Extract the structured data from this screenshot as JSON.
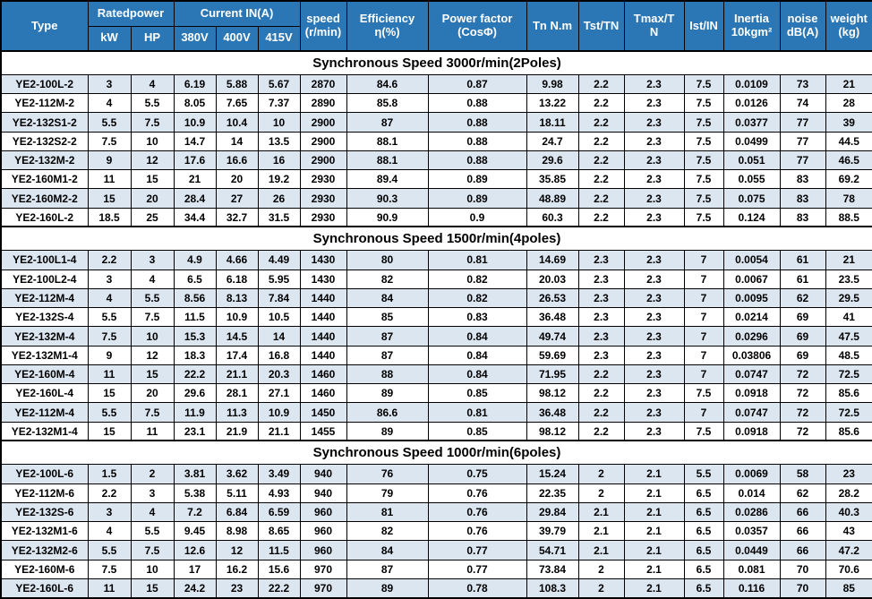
{
  "table": {
    "header": {
      "type": "Type",
      "rated_power": "Ratedpower",
      "kw": "kW",
      "hp": "HP",
      "current": "Current IN(A)",
      "v380": "380V",
      "v400": "400V",
      "v415": "415V",
      "speed_l1": "speed",
      "speed_l2": "(r/min)",
      "efficiency_l1": "Efficiency",
      "efficiency_l2": "η(%)",
      "power_factor_l1": "Power factor",
      "power_factor_l2": "(CosΦ)",
      "tn": "Tn N.m",
      "tst": "Tst/TN",
      "tmax": "Tmax/TN",
      "ist": "Ist/IN",
      "inertia_l1": "Inertia",
      "inertia_l2": "10kgm²",
      "noise_l1": "noise",
      "noise_l2": "dB(A)",
      "weight_l1": "weight",
      "weight_l2": "(kg)"
    },
    "sections": [
      {
        "title": "Synchronous Speed 3000r/min(2Poles)",
        "rows": [
          [
            "YE2-100L-2",
            "3",
            "4",
            "6.19",
            "5.88",
            "5.67",
            "2870",
            "84.6",
            "0.87",
            "9.98",
            "2.2",
            "2.3",
            "7.5",
            "0.0109",
            "73",
            "21"
          ],
          [
            "YE2-112M-2",
            "4",
            "5.5",
            "8.05",
            "7.65",
            "7.37",
            "2890",
            "85.8",
            "0.88",
            "13.22",
            "2.2",
            "2.3",
            "7.5",
            "0.0126",
            "74",
            "28"
          ],
          [
            "YE2-132S1-2",
            "5.5",
            "7.5",
            "10.9",
            "10.4",
            "10",
            "2900",
            "87",
            "0.88",
            "18.11",
            "2.2",
            "2.3",
            "7.5",
            "0.0377",
            "77",
            "39"
          ],
          [
            "YE2-132S2-2",
            "7.5",
            "10",
            "14.7",
            "14",
            "13.5",
            "2900",
            "88.1",
            "0.88",
            "24.7",
            "2.2",
            "2.3",
            "7.5",
            "0.0499",
            "77",
            "44.5"
          ],
          [
            "YE2-132M-2",
            "9",
            "12",
            "17.6",
            "16.6",
            "16",
            "2900",
            "88.1",
            "0.88",
            "29.6",
            "2.2",
            "2.3",
            "7.5",
            "0.051",
            "77",
            "46.5"
          ],
          [
            "YE2-160M1-2",
            "11",
            "15",
            "21",
            "20",
            "19.2",
            "2930",
            "89.4",
            "0.89",
            "35.85",
            "2.2",
            "2.3",
            "7.5",
            "0.055",
            "83",
            "69.2"
          ],
          [
            "YE2-160M2-2",
            "15",
            "20",
            "28.4",
            "27",
            "26",
            "2930",
            "90.3",
            "0.89",
            "48.89",
            "2.2",
            "2.3",
            "7.5",
            "0.075",
            "83",
            "78"
          ],
          [
            "YE2-160L-2",
            "18.5",
            "25",
            "34.4",
            "32.7",
            "31.5",
            "2930",
            "90.9",
            "0.9",
            "60.3",
            "2.2",
            "2.3",
            "7.5",
            "0.124",
            "83",
            "88.5"
          ]
        ]
      },
      {
        "title": "Synchronous Speed 1500r/min(4poles)",
        "rows": [
          [
            "YE2-100L1-4",
            "2.2",
            "3",
            "4.9",
            "4.66",
            "4.49",
            "1430",
            "80",
            "0.81",
            "14.69",
            "2.3",
            "2.3",
            "7",
            "0.0054",
            "61",
            "21"
          ],
          [
            "YE2-100L2-4",
            "3",
            "4",
            "6.5",
            "6.18",
            "5.95",
            "1430",
            "82",
            "0.82",
            "20.03",
            "2.3",
            "2.3",
            "7",
            "0.0067",
            "61",
            "23.5"
          ],
          [
            "YE2-112M-4",
            "4",
            "5.5",
            "8.56",
            "8.13",
            "7.84",
            "1440",
            "84",
            "0.82",
            "26.53",
            "2.3",
            "2.3",
            "7",
            "0.0095",
            "62",
            "29.5"
          ],
          [
            "YE2-132S-4",
            "5.5",
            "7.5",
            "11.5",
            "10.9",
            "10.5",
            "1440",
            "85",
            "0.83",
            "36.48",
            "2.3",
            "2.3",
            "7",
            "0.0214",
            "69",
            "41"
          ],
          [
            "YE2-132M-4",
            "7.5",
            "10",
            "15.3",
            "14.5",
            "14",
            "1440",
            "87",
            "0.84",
            "49.74",
            "2.3",
            "2.3",
            "7",
            "0.0296",
            "69",
            "47.5"
          ],
          [
            "YE2-132M1-4",
            "9",
            "12",
            "18.3",
            "17.4",
            "16.8",
            "1440",
            "87",
            "0.84",
            "59.69",
            "2.3",
            "2.3",
            "7",
            "0.03806",
            "69",
            "48.5"
          ],
          [
            "YE2-160M-4",
            "11",
            "15",
            "22.2",
            "21.1",
            "20.3",
            "1460",
            "88",
            "0.84",
            "71.95",
            "2.2",
            "2.3",
            "7",
            "0.0747",
            "72",
            "72.5"
          ],
          [
            "YE2-160L-4",
            "15",
            "20",
            "29.6",
            "28.1",
            "27.1",
            "1460",
            "89",
            "0.85",
            "98.12",
            "2.2",
            "2.3",
            "7.5",
            "0.0918",
            "72",
            "85.6"
          ],
          [
            "YE2-112M-4",
            "5.5",
            "7.5",
            "11.9",
            "11.3",
            "10.9",
            "1450",
            "86.6",
            "0.81",
            "36.48",
            "2.2",
            "2.3",
            "7",
            "0.0747",
            "72",
            "72.5"
          ],
          [
            "YE2-132M1-4",
            "15",
            "11",
            "23.1",
            "21.9",
            "21.1",
            "1455",
            "89",
            "0.85",
            "98.12",
            "2.2",
            "2.3",
            "7.5",
            "0.0918",
            "72",
            "85.6"
          ]
        ]
      },
      {
        "title": "Synchronous Speed 1000r/min(6poles)",
        "rows": [
          [
            "YE2-100L-6",
            "1.5",
            "2",
            "3.81",
            "3.62",
            "3.49",
            "940",
            "76",
            "0.75",
            "15.24",
            "2",
            "2.1",
            "5.5",
            "0.0069",
            "58",
            "23"
          ],
          [
            "YE2-112M-6",
            "2.2",
            "3",
            "5.38",
            "5.11",
            "4.93",
            "940",
            "79",
            "0.76",
            "22.35",
            "2",
            "2.1",
            "6.5",
            "0.014",
            "62",
            "28.2"
          ],
          [
            "YE2-132S-6",
            "3",
            "4",
            "7.2",
            "6.84",
            "6.59",
            "960",
            "81",
            "0.76",
            "29.84",
            "2.1",
            "2.1",
            "6.5",
            "0.0286",
            "66",
            "40.3"
          ],
          [
            "YE2-132M1-6",
            "4",
            "5.5",
            "9.45",
            "8.98",
            "8.65",
            "960",
            "82",
            "0.76",
            "39.79",
            "2.1",
            "2.1",
            "6.5",
            "0.0357",
            "66",
            "43"
          ],
          [
            "YE2-132M2-6",
            "5.5",
            "7.5",
            "12.6",
            "12",
            "11.5",
            "960",
            "84",
            "0.77",
            "54.71",
            "2.1",
            "2.1",
            "6.5",
            "0.0449",
            "66",
            "47.2"
          ],
          [
            "YE2-160M-6",
            "7.5",
            "10",
            "17",
            "16.2",
            "15.6",
            "970",
            "87",
            "0.77",
            "73.84",
            "2",
            "2.1",
            "6.5",
            "0.081",
            "70",
            "70.6"
          ],
          [
            "YE2-160L-6",
            "11",
            "15",
            "24.2",
            "23",
            "22.2",
            "970",
            "89",
            "0.78",
            "108.3",
            "2",
            "2.1",
            "6.5",
            "0.116",
            "70",
            "85"
          ]
        ]
      }
    ]
  },
  "colors": {
    "header_bg": "#2B76B4",
    "header_text": "#FFFFFF",
    "row_alt_bg": "#DCE6F1",
    "row_bg": "#FFFFFF",
    "border": "#000000"
  }
}
